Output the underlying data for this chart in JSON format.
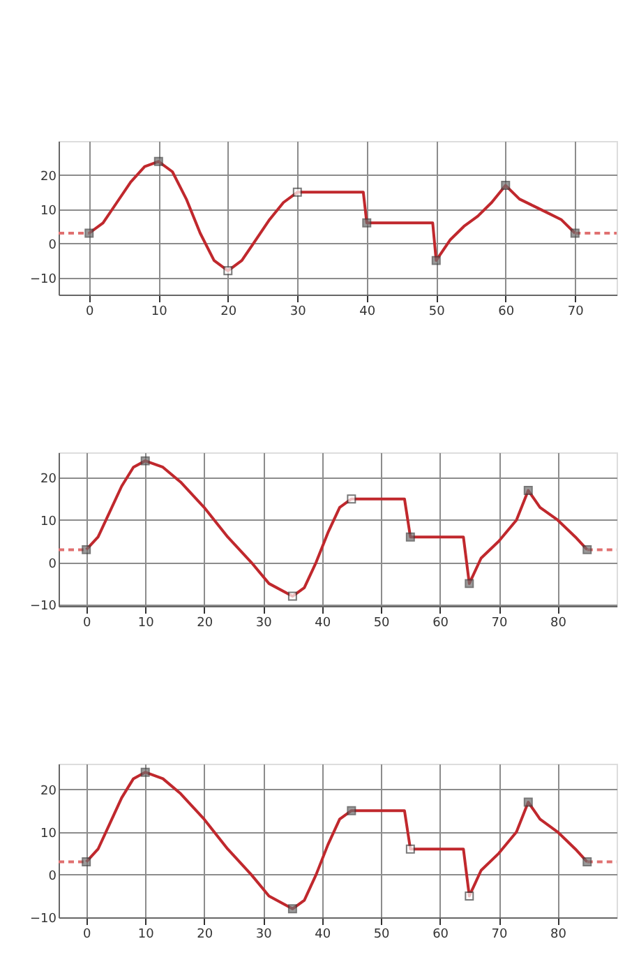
{
  "chart_data": [
    {
      "type": "line",
      "xlim": [
        -4.4,
        76
      ],
      "ylim": [
        -15,
        30
      ],
      "xticks": [
        0,
        10,
        20,
        30,
        40,
        50,
        60,
        70
      ],
      "yticks": [
        -10,
        0,
        10,
        20
      ],
      "grid": true,
      "legend": false,
      "series": [
        {
          "type": "line",
          "color": "#c0282d",
          "line_style": "solid",
          "x": [
            0,
            2,
            4,
            6,
            8,
            10,
            12,
            14,
            16,
            18,
            20,
            22,
            24,
            26,
            28,
            30,
            39.5,
            40,
            49.5,
            50,
            52,
            54,
            56,
            58,
            60,
            62,
            64,
            66,
            68,
            70
          ],
          "values": [
            3,
            6,
            12,
            18,
            22.5,
            24,
            21,
            13,
            3,
            -5,
            -8,
            -5,
            1,
            7,
            12,
            15,
            15,
            6,
            6,
            -5,
            1,
            5,
            8,
            12,
            17,
            13,
            11,
            9,
            7,
            3
          ]
        },
        {
          "type": "line",
          "color": "#e07070",
          "line_style": "dashed",
          "x": [
            -4.4,
            0
          ],
          "values": [
            3,
            3
          ]
        },
        {
          "type": "line",
          "color": "#e07070",
          "line_style": "dashed",
          "x": [
            70,
            76
          ],
          "values": [
            3,
            3
          ]
        },
        {
          "type": "scatter",
          "marker": "square",
          "x": [
            0,
            10,
            20,
            30,
            40,
            50,
            60,
            70
          ],
          "values": [
            3,
            24,
            -8,
            15,
            6,
            -5,
            17,
            3
          ],
          "colors": [
            "#707070",
            "#707070",
            "#ffffff",
            "#ffffff",
            "#707070",
            "#707070",
            "#707070",
            "#707070"
          ]
        }
      ]
    },
    {
      "type": "line",
      "xlim": [
        -4.7,
        90
      ],
      "ylim": [
        -10.3,
        26
      ],
      "xticks": [
        0,
        10,
        20,
        30,
        40,
        50,
        60,
        70,
        80
      ],
      "yticks": [
        -10,
        0,
        10,
        20
      ],
      "grid": true,
      "legend": false,
      "series": [
        {
          "type": "line",
          "color": "#c0282d",
          "line_style": "solid",
          "x": [
            0,
            2,
            4,
            6,
            8,
            10,
            13,
            16,
            20,
            24,
            28,
            31,
            35,
            37,
            39,
            41,
            43,
            45,
            54,
            55,
            64,
            65,
            67,
            70,
            73,
            75,
            77,
            80,
            83,
            85
          ],
          "values": [
            3,
            6,
            12,
            18,
            22.5,
            24,
            22.5,
            19,
            13,
            6,
            0,
            -5,
            -8,
            -6,
            0,
            7,
            13,
            15,
            15,
            6,
            6,
            -5,
            1,
            5,
            10,
            17,
            13,
            10,
            6,
            3
          ]
        },
        {
          "type": "line",
          "color": "#e07070",
          "line_style": "dashed",
          "x": [
            -4.7,
            0
          ],
          "values": [
            3,
            3
          ]
        },
        {
          "type": "line",
          "color": "#e07070",
          "line_style": "dashed",
          "x": [
            85,
            90
          ],
          "values": [
            3,
            3
          ]
        },
        {
          "type": "scatter",
          "marker": "square",
          "x": [
            0,
            10,
            35,
            45,
            55,
            65,
            75,
            85
          ],
          "values": [
            3,
            24,
            -8,
            15,
            6,
            -5,
            17,
            3
          ],
          "colors": [
            "#707070",
            "#707070",
            "#ffffff",
            "#ffffff",
            "#707070",
            "#707070",
            "#707070",
            "#707070"
          ]
        }
      ]
    },
    {
      "type": "line",
      "xlim": [
        -4.7,
        90
      ],
      "ylim": [
        -10,
        26
      ],
      "xticks": [
        0,
        10,
        20,
        30,
        40,
        50,
        60,
        70,
        80
      ],
      "yticks": [
        -10,
        0,
        10,
        20
      ],
      "grid": true,
      "legend": false,
      "series": [
        {
          "type": "line",
          "color": "#c0282d",
          "line_style": "solid",
          "x": [
            0,
            2,
            4,
            6,
            8,
            10,
            13,
            16,
            20,
            24,
            28,
            31,
            35,
            37,
            39,
            41,
            43,
            45,
            54,
            55,
            64,
            65,
            67,
            70,
            73,
            75,
            77,
            80,
            83,
            85
          ],
          "values": [
            3,
            6,
            12,
            18,
            22.5,
            24,
            22.5,
            19,
            13,
            6,
            0,
            -5,
            -8,
            -6,
            0,
            7,
            13,
            15,
            15,
            6,
            6,
            -5,
            1,
            5,
            10,
            17,
            13,
            10,
            6,
            3
          ]
        },
        {
          "type": "line",
          "color": "#e07070",
          "line_style": "dashed",
          "x": [
            -4.7,
            0
          ],
          "values": [
            3,
            3
          ]
        },
        {
          "type": "line",
          "color": "#e07070",
          "line_style": "dashed",
          "x": [
            85,
            90
          ],
          "values": [
            3,
            3
          ]
        },
        {
          "type": "scatter",
          "marker": "square",
          "x": [
            0,
            10,
            35,
            45,
            55,
            65,
            75,
            85
          ],
          "values": [
            3,
            24,
            -8,
            15,
            6,
            -5,
            17,
            3
          ],
          "colors": [
            "#707070",
            "#707070",
            "#707070",
            "#707070",
            "#ffffff",
            "#ffffff",
            "#707070",
            "#707070"
          ]
        }
      ]
    }
  ]
}
